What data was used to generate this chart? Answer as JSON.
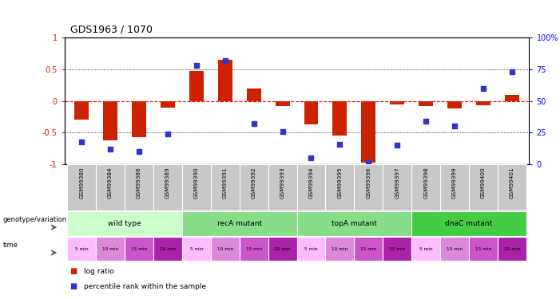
{
  "title": "GDS1963 / 1070",
  "samples": [
    "GSM99380",
    "GSM99384",
    "GSM99386",
    "GSM99389",
    "GSM99390",
    "GSM99391",
    "GSM99392",
    "GSM99393",
    "GSM99394",
    "GSM99395",
    "GSM99396",
    "GSM99397",
    "GSM99398",
    "GSM99399",
    "GSM99400",
    "GSM99401"
  ],
  "log_ratio": [
    -0.3,
    -0.62,
    -0.57,
    -0.1,
    0.47,
    0.65,
    0.2,
    -0.08,
    -0.37,
    -0.55,
    -0.97,
    -0.05,
    -0.08,
    -0.12,
    -0.07,
    0.1
  ],
  "percentile_rank": [
    18,
    12,
    10,
    24,
    78,
    82,
    32,
    26,
    5,
    16,
    2,
    15,
    34,
    30,
    60,
    73
  ],
  "genotype_groups": [
    {
      "label": "wild type",
      "start": 0,
      "end": 3,
      "color": "#ccffcc"
    },
    {
      "label": "recA mutant",
      "start": 4,
      "end": 7,
      "color": "#88dd88"
    },
    {
      "label": "topA mutant",
      "start": 8,
      "end": 11,
      "color": "#88dd88"
    },
    {
      "label": "dnaC mutant",
      "start": 12,
      "end": 15,
      "color": "#44cc44"
    }
  ],
  "time_colors_cycle": [
    "#ffbbff",
    "#dd88dd",
    "#cc55cc",
    "#aa22aa"
  ],
  "time_labels": [
    "5 min",
    "10 min",
    "15 min",
    "20 min",
    "5 min",
    "10 min",
    "15 min",
    "20 min",
    "5 min",
    "10 min",
    "15 min",
    "20 min",
    "5 min",
    "10 min",
    "15 min",
    "20 min"
  ],
  "bar_color": "#cc2200",
  "dot_color": "#3333cc",
  "ylim_left": [
    -1,
    1
  ],
  "ylim_right": [
    0,
    100
  ],
  "yticks_left": [
    -1,
    -0.5,
    0,
    0.5,
    1
  ],
  "yticks_right": [
    0,
    25,
    50,
    75,
    100
  ],
  "background_color": "#ffffff"
}
